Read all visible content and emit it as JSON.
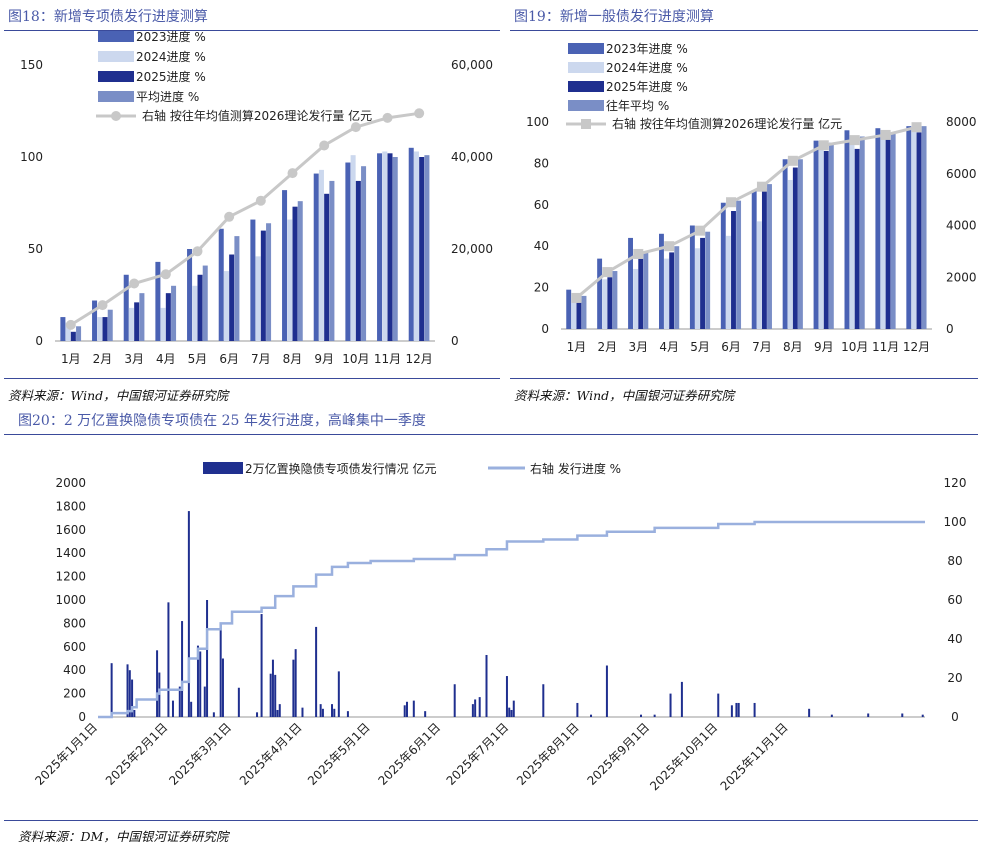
{
  "fig18": {
    "caption": "图18：新增专项债发行进度测算",
    "source": "资料来源：Wind，中国银河证券研究院"
  },
  "fig19": {
    "caption": "图19：新增一般债发行进度测算",
    "source": "资料来源：Wind，中国银河证券研究院"
  },
  "fig20": {
    "caption": "图20：2 万亿置换隐债专项债在 25 年发行进度，高峰集中一季度",
    "source": "资料来源：DM，中国银河证券研究院"
  },
  "colors": {
    "dark_blue": "#1f2f8f",
    "mid_blue": "#4a62b4",
    "light_blue": "#ccd8ee",
    "avg_blue": "#7a8ec6",
    "line_gray": "#c8c8c8",
    "line_light_blue": "#9ab0de",
    "caption_blue": "#4a5aa8"
  },
  "chart_data": [
    {
      "type": "bar",
      "categories": [
        "1月",
        "2月",
        "3月",
        "4月",
        "5月",
        "6月",
        "7月",
        "8月",
        "9月",
        "10月",
        "11月",
        "12月"
      ],
      "series": [
        {
          "name": "2023进度 %",
          "values": [
            13,
            22,
            36,
            43,
            50,
            61,
            66,
            82,
            91,
            97,
            102,
            105
          ],
          "color": "#4a62b4"
        },
        {
          "name": "2024进度 %",
          "values": [
            10,
            13,
            18,
            18,
            30,
            38,
            46,
            66,
            93,
            101,
            103,
            103
          ],
          "color": "#ccd8ee"
        },
        {
          "name": "2025进度 %",
          "values": [
            5,
            13,
            21,
            26,
            36,
            47,
            60,
            73,
            80,
            87,
            102,
            100
          ],
          "color": "#1f2f8f"
        },
        {
          "name": "平均进度 %",
          "values": [
            8,
            17,
            26,
            30,
            41,
            57,
            64,
            76,
            87,
            95,
            100,
            101
          ],
          "color": "#7a8ec6"
        }
      ],
      "line": {
        "name": "右轴 按往年均值测算2026理论发行量 亿元",
        "values": [
          3500,
          7800,
          12500,
          14500,
          19500,
          27000,
          30500,
          36500,
          42500,
          46500,
          48500,
          49500
        ],
        "axis": "right"
      },
      "ylim": [
        0,
        150
      ],
      "yticks": [
        "0",
        "50",
        "100",
        "150"
      ],
      "ylim_right": [
        0,
        60000
      ],
      "yticks_right": [
        "0",
        "20,000",
        "40,000",
        "60,000"
      ],
      "legend_position": "top-center"
    },
    {
      "type": "bar",
      "categories": [
        "1月",
        "2月",
        "3月",
        "4月",
        "5月",
        "6月",
        "7月",
        "8月",
        "9月",
        "10月",
        "11月",
        "12月"
      ],
      "series": [
        {
          "name": "2023年进度 %",
          "values": [
            19,
            34,
            44,
            46,
            50,
            61,
            67,
            82,
            91,
            96,
            97,
            98
          ],
          "color": "#4a62b4"
        },
        {
          "name": "2024年进度 %",
          "values": [
            14,
            24,
            29,
            34,
            39,
            45,
            52,
            72,
            89,
            91,
            95,
            96
          ],
          "color": "#ccd8ee"
        },
        {
          "name": "2025年进度 %",
          "values": [
            13,
            25,
            34,
            37,
            44,
            57,
            68,
            78,
            86,
            87,
            92,
            95
          ],
          "color": "#1f2f8f"
        },
        {
          "name": "往年平均 %",
          "values": [
            16,
            28,
            37,
            40,
            47,
            62,
            70,
            82,
            90,
            93,
            95,
            98
          ],
          "color": "#7a8ec6"
        }
      ],
      "line": {
        "name": "右轴 按往年均值测算2026理论发行量 亿元",
        "values": [
          1200,
          2200,
          2900,
          3200,
          3800,
          4900,
          5500,
          6500,
          7100,
          7300,
          7500,
          7800
        ],
        "axis": "right"
      },
      "ylim": [
        0,
        100
      ],
      "yticks": [
        "0",
        "20",
        "40",
        "60",
        "80",
        "100"
      ],
      "ylim_right": [
        0,
        8000
      ],
      "yticks_right": [
        "0",
        "2000",
        "4000",
        "6000",
        "8000"
      ],
      "legend_position": "top-center"
    },
    {
      "type": "bar",
      "x_start": "2025-01-01",
      "x_end": "2025-12-31",
      "xticks": [
        "2025年1月1日",
        "2025年2月1日",
        "2025年3月1日",
        "2025年4月1日",
        "2025年5月1日",
        "2025年6月1日",
        "2025年7月1日",
        "2025年8月1日",
        "2025年9月1日",
        "2025年10月1日",
        "2025年11月1日"
      ],
      "bars": {
        "name": "2万亿置换隐债专项债发行情况 亿元",
        "points": [
          {
            "x": "2025-01-07",
            "y": 460
          },
          {
            "x": "2025-01-14",
            "y": 450
          },
          {
            "x": "2025-01-15",
            "y": 400
          },
          {
            "x": "2025-01-16",
            "y": 320
          },
          {
            "x": "2025-01-17",
            "y": 60
          },
          {
            "x": "2025-01-27",
            "y": 570
          },
          {
            "x": "2025-01-28",
            "y": 380
          },
          {
            "x": "2025-02-01",
            "y": 980
          },
          {
            "x": "2025-02-03",
            "y": 140
          },
          {
            "x": "2025-02-06",
            "y": 260
          },
          {
            "x": "2025-02-07",
            "y": 820
          },
          {
            "x": "2025-02-10",
            "y": 1760
          },
          {
            "x": "2025-02-11",
            "y": 130
          },
          {
            "x": "2025-02-14",
            "y": 610
          },
          {
            "x": "2025-02-15",
            "y": 560
          },
          {
            "x": "2025-02-17",
            "y": 260
          },
          {
            "x": "2025-02-18",
            "y": 1000
          },
          {
            "x": "2025-02-21",
            "y": 40
          },
          {
            "x": "2025-02-24",
            "y": 790
          },
          {
            "x": "2025-02-25",
            "y": 500
          },
          {
            "x": "2025-03-04",
            "y": 250
          },
          {
            "x": "2025-03-12",
            "y": 40
          },
          {
            "x": "2025-03-14",
            "y": 880
          },
          {
            "x": "2025-03-18",
            "y": 370
          },
          {
            "x": "2025-03-19",
            "y": 490
          },
          {
            "x": "2025-03-20",
            "y": 360
          },
          {
            "x": "2025-03-21",
            "y": 60
          },
          {
            "x": "2025-03-22",
            "y": 110
          },
          {
            "x": "2025-03-28",
            "y": 490
          },
          {
            "x": "2025-03-29",
            "y": 580
          },
          {
            "x": "2025-04-01",
            "y": 80
          },
          {
            "x": "2025-04-07",
            "y": 770
          },
          {
            "x": "2025-04-09",
            "y": 110
          },
          {
            "x": "2025-04-10",
            "y": 70
          },
          {
            "x": "2025-04-14",
            "y": 110
          },
          {
            "x": "2025-04-15",
            "y": 70
          },
          {
            "x": "2025-04-17",
            "y": 390
          },
          {
            "x": "2025-04-21",
            "y": 50
          },
          {
            "x": "2025-05-16",
            "y": 100
          },
          {
            "x": "2025-05-17",
            "y": 130
          },
          {
            "x": "2025-05-20",
            "y": 140
          },
          {
            "x": "2025-05-25",
            "y": 50
          },
          {
            "x": "2025-06-07",
            "y": 280
          },
          {
            "x": "2025-06-15",
            "y": 110
          },
          {
            "x": "2025-06-16",
            "y": 150
          },
          {
            "x": "2025-06-18",
            "y": 170
          },
          {
            "x": "2025-06-21",
            "y": 530
          },
          {
            "x": "2025-06-30",
            "y": 350
          },
          {
            "x": "2025-07-01",
            "y": 80
          },
          {
            "x": "2025-07-02",
            "y": 60
          },
          {
            "x": "2025-07-03",
            "y": 140
          },
          {
            "x": "2025-07-16",
            "y": 280
          },
          {
            "x": "2025-07-31",
            "y": 120
          },
          {
            "x": "2025-08-06",
            "y": 20
          },
          {
            "x": "2025-08-13",
            "y": 440
          },
          {
            "x": "2025-08-28",
            "y": 20
          },
          {
            "x": "2025-09-03",
            "y": 20
          },
          {
            "x": "2025-09-10",
            "y": 200
          },
          {
            "x": "2025-09-15",
            "y": 300
          },
          {
            "x": "2025-10-01",
            "y": 200
          },
          {
            "x": "2025-10-07",
            "y": 100
          },
          {
            "x": "2025-10-09",
            "y": 120
          },
          {
            "x": "2025-10-10",
            "y": 120
          },
          {
            "x": "2025-10-17",
            "y": 120
          },
          {
            "x": "2025-11-10",
            "y": 70
          },
          {
            "x": "2025-11-20",
            "y": 20
          },
          {
            "x": "2025-12-06",
            "y": 30
          },
          {
            "x": "2025-12-21",
            "y": 30
          },
          {
            "x": "2025-12-30",
            "y": 20
          }
        ]
      },
      "line": {
        "name": "右轴 发行进度 %",
        "points": [
          {
            "x": "2025-01-01",
            "y": 0
          },
          {
            "x": "2025-01-07",
            "y": 2
          },
          {
            "x": "2025-01-14",
            "y": 3
          },
          {
            "x": "2025-01-16",
            "y": 5
          },
          {
            "x": "2025-01-18",
            "y": 9
          },
          {
            "x": "2025-01-27",
            "y": 12
          },
          {
            "x": "2025-01-28",
            "y": 14
          },
          {
            "x": "2025-02-07",
            "y": 18
          },
          {
            "x": "2025-02-10",
            "y": 30
          },
          {
            "x": "2025-02-14",
            "y": 35
          },
          {
            "x": "2025-02-18",
            "y": 45
          },
          {
            "x": "2025-02-24",
            "y": 48
          },
          {
            "x": "2025-03-01",
            "y": 54
          },
          {
            "x": "2025-03-14",
            "y": 56
          },
          {
            "x": "2025-03-20",
            "y": 62
          },
          {
            "x": "2025-03-28",
            "y": 67
          },
          {
            "x": "2025-04-07",
            "y": 73
          },
          {
            "x": "2025-04-14",
            "y": 77
          },
          {
            "x": "2025-04-21",
            "y": 79
          },
          {
            "x": "2025-05-01",
            "y": 80
          },
          {
            "x": "2025-05-20",
            "y": 81
          },
          {
            "x": "2025-06-07",
            "y": 83
          },
          {
            "x": "2025-06-21",
            "y": 86
          },
          {
            "x": "2025-06-30",
            "y": 90
          },
          {
            "x": "2025-07-16",
            "y": 91
          },
          {
            "x": "2025-07-31",
            "y": 93
          },
          {
            "x": "2025-08-13",
            "y": 95
          },
          {
            "x": "2025-09-03",
            "y": 97
          },
          {
            "x": "2025-10-01",
            "y": 99
          },
          {
            "x": "2025-10-17",
            "y": 100
          },
          {
            "x": "2025-12-31",
            "y": 100
          }
        ]
      },
      "ylim": [
        0,
        2000
      ],
      "yticks": [
        "0",
        "200",
        "400",
        "600",
        "800",
        "1000",
        "1200",
        "1400",
        "1600",
        "1800",
        "2000"
      ],
      "ylim_right": [
        0,
        120
      ],
      "yticks_right": [
        "0",
        "20",
        "40",
        "60",
        "80",
        "100",
        "120"
      ],
      "legend_position": "top-center"
    }
  ]
}
